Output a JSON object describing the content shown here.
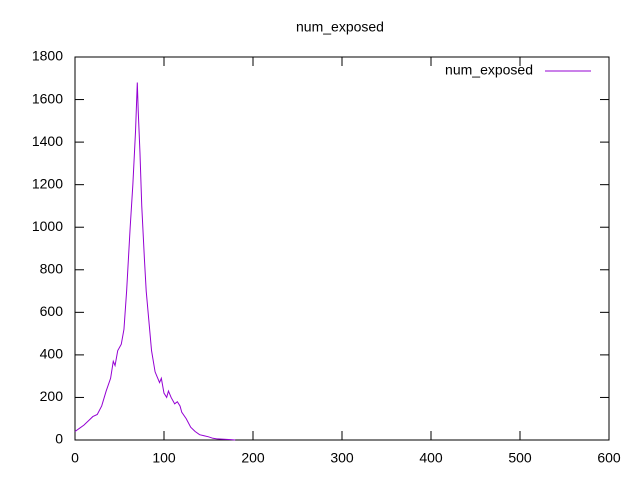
{
  "chart_data": {
    "type": "line",
    "title": "num_exposed",
    "x": [
      0,
      5,
      10,
      15,
      20,
      25,
      30,
      35,
      40,
      43,
      45,
      48,
      52,
      55,
      58,
      60,
      62,
      65,
      68,
      70,
      71,
      73,
      75,
      78,
      80,
      83,
      86,
      90,
      93,
      95,
      97,
      100,
      103,
      105,
      108,
      112,
      115,
      118,
      120,
      125,
      130,
      135,
      140,
      145,
      150,
      155,
      160,
      165,
      170,
      175,
      180
    ],
    "series": [
      {
        "name": "num_exposed",
        "color": "#9400d3",
        "values": [
          40,
          55,
          70,
          90,
          110,
          120,
          160,
          230,
          290,
          370,
          350,
          420,
          450,
          520,
          700,
          850,
          1000,
          1200,
          1450,
          1680,
          1550,
          1350,
          1100,
          850,
          700,
          560,
          420,
          320,
          290,
          270,
          290,
          220,
          200,
          230,
          200,
          170,
          180,
          160,
          130,
          100,
          60,
          40,
          25,
          20,
          15,
          8,
          5,
          4,
          3,
          2,
          0
        ]
      }
    ],
    "xlim": [
      0,
      600
    ],
    "xticks": [
      0,
      100,
      200,
      300,
      400,
      500,
      600
    ],
    "ylim": [
      0,
      1800
    ],
    "yticks": [
      0,
      200,
      400,
      600,
      800,
      1000,
      1200,
      1400,
      1600,
      1800
    ],
    "grid": false,
    "legend_position": "top-right"
  }
}
